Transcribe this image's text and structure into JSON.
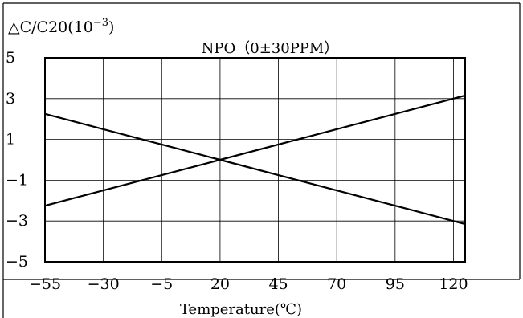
{
  "chart_data": {
    "type": "line",
    "title": "NPO（0±30PPM）",
    "ylabel_main": "△C/C20(10",
    "ylabel_exp": "−3",
    "ylabel_close": ")",
    "xlabel": "Temperature(℃)",
    "xlim": [
      -55,
      125
    ],
    "ylim": [
      -5,
      5
    ],
    "x_ticks": [
      -55,
      -30,
      -5,
      20,
      45,
      70,
      95,
      120
    ],
    "x_tick_labels": [
      "−55",
      "−30",
      "−5",
      "20",
      "45",
      "70",
      "95",
      "120"
    ],
    "y_ticks": [
      5,
      3,
      1,
      -1,
      -3,
      -5
    ],
    "y_tick_labels": [
      "5",
      "3",
      "1",
      "−1",
      "−3",
      "−5"
    ],
    "grid": true,
    "series": [
      {
        "x": [
          -55,
          20,
          125
        ],
        "y": [
          2.25,
          0,
          -3.15
        ]
      },
      {
        "x": [
          -55,
          20,
          125
        ],
        "y": [
          -2.25,
          0,
          3.15
        ]
      }
    ],
    "colors": {
      "line": "#000000",
      "grid": "#000000",
      "border": "#000000"
    }
  }
}
